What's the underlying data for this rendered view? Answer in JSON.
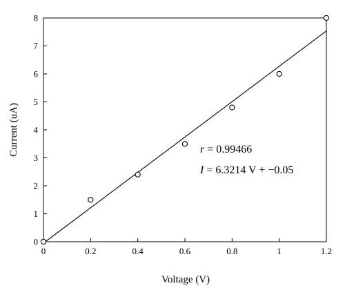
{
  "chart_data": {
    "type": "scatter",
    "title": "",
    "xlabel": "Voltage (V)",
    "ylabel": "Current (uA)",
    "xlim": [
      0,
      1.2
    ],
    "ylim": [
      0,
      8
    ],
    "xticks": [
      0,
      0.2,
      0.4,
      0.6,
      0.8,
      1.0,
      1.2
    ],
    "xtick_labels": [
      "0",
      "0.2",
      "0.4",
      "0.6",
      "0.8",
      "1",
      "1.2"
    ],
    "yticks": [
      0,
      1,
      2,
      3,
      4,
      5,
      6,
      7,
      8
    ],
    "ytick_labels": [
      "0",
      "1",
      "2",
      "3",
      "4",
      "5",
      "6",
      "7",
      "8"
    ],
    "grid": false,
    "series": [
      {
        "x": [
          0,
          0.2,
          0.4,
          0.6,
          0.8,
          1.0,
          1.2
        ],
        "y": [
          0,
          1.5,
          2.4,
          3.5,
          4.8,
          6.0,
          8.0
        ]
      }
    ],
    "fit_line": {
      "slope": 6.3214,
      "intercept": -0.05,
      "x_range": [
        0,
        1.2
      ]
    },
    "annotations": {
      "r_var": "r",
      "r_rest": " = 0.99466",
      "eq_var": "I",
      "eq_rest": " = 6.3214 V + −0.05"
    }
  }
}
